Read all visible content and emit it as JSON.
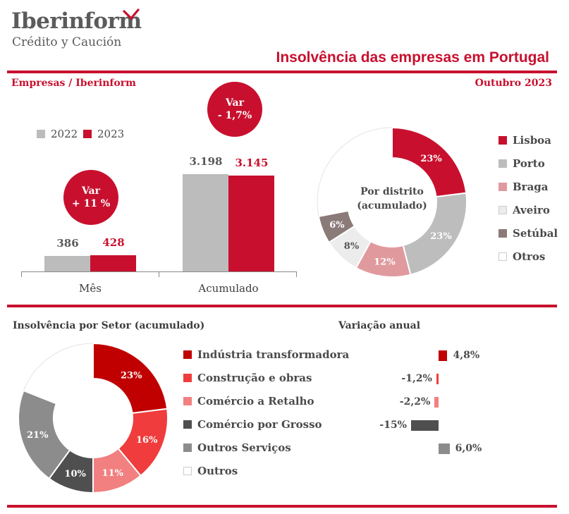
{
  "header": {
    "brand_name": "Iberinform",
    "brand_sub": "Crédito y Caución",
    "title": "Insolvência das empresas em Portugal",
    "section_left": "Empresas / Iberinform",
    "section_right": "Outubro 2023"
  },
  "colors": {
    "accent": "#c8102e",
    "grey": "#bcbcbc"
  },
  "chart_data": [
    {
      "type": "bar",
      "categories": [
        "Mês",
        "Acumulado"
      ],
      "series": [
        {
          "name": "2022",
          "values": [
            386,
            3198
          ],
          "labels": [
            "386",
            "3.198"
          ],
          "color": "#bcbcbc"
        },
        {
          "name": "2023",
          "values": [
            428,
            3145
          ],
          "labels": [
            "428",
            "3.145"
          ],
          "color": "#c8102e"
        }
      ],
      "annotations": [
        {
          "line1": "Var",
          "line2": "+ 11 %"
        },
        {
          "line1": "Var",
          "line2": "- 1,7%"
        }
      ]
    },
    {
      "type": "pie",
      "center_label_1": "Por distrito",
      "center_label_2": "(acumulado)",
      "slices": [
        {
          "name": "Lisboa",
          "value": 23,
          "label": "23%",
          "color": "#c8102e"
        },
        {
          "name": "Porto",
          "value": 23,
          "label": "23%",
          "color": "#bdbdbd"
        },
        {
          "name": "Braga",
          "value": 12,
          "label": "12%",
          "color": "#e09a9e"
        },
        {
          "name": "Aveiro",
          "value": 8,
          "label": "8%",
          "color": "#ececec"
        },
        {
          "name": "Setúbal",
          "value": 6,
          "label": "6%",
          "color": "#8a7a78"
        },
        {
          "name": "Otros",
          "value": 28,
          "label": "",
          "color": "#ffffff"
        }
      ]
    },
    {
      "type": "pie",
      "title": "Insolvência por Setor (acumulado)",
      "slices": [
        {
          "name": "Indústria transformadora",
          "value": 23,
          "label": "23%",
          "color": "#c00000"
        },
        {
          "name": "Construção e obras",
          "value": 16,
          "label": "16%",
          "color": "#f03c3c"
        },
        {
          "name": "Comércio a Retalho",
          "value": 11,
          "label": "11%",
          "color": "#f28080"
        },
        {
          "name": "Comércio por Grosso",
          "value": 10,
          "label": "10%",
          "color": "#4f4f4f"
        },
        {
          "name": "Outros Serviços",
          "value": 21,
          "label": "21%",
          "color": "#8c8c8c"
        },
        {
          "name": "Outros",
          "value": 19,
          "label": "",
          "color": "#ffffff"
        }
      ]
    },
    {
      "type": "bar",
      "title": "Variação anual",
      "categories": [
        "Indústria transformadora",
        "Construção e obras",
        "Comércio a Retalho",
        "Comércio por Grosso",
        "Outros Serviços"
      ],
      "values": [
        4.8,
        -1.2,
        -2.2,
        -15,
        6.0
      ],
      "labels": [
        "4,8%",
        "-1,2%",
        "-2,2%",
        "-15%",
        "6,0%"
      ],
      "colors": [
        "#c00000",
        "#f03c3c",
        "#f28080",
        "#4f4f4f",
        "#8c8c8c"
      ]
    }
  ]
}
